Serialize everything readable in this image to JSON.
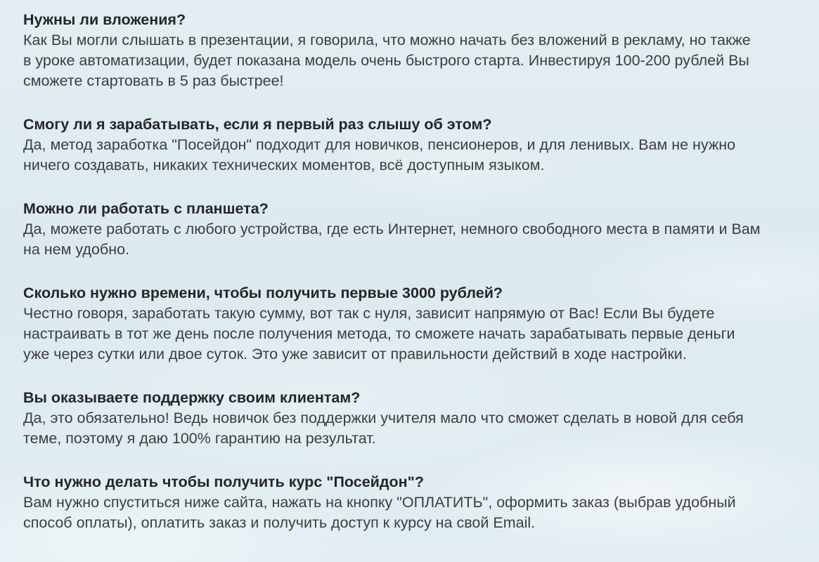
{
  "page": {
    "background_color": "#dfebf1",
    "heading_color": "#262626",
    "body_text_color": "#3d3d3d"
  },
  "faq": {
    "items": [
      {
        "question": "Нужны ли вложения?",
        "answer": "Как Вы могли слышать в презентации, я говорила, что можно начать без вложений в рекламу, но также в уроке автоматизации, будет показана модель очень быстрого старта. Инвестируя 100-200 рублей Вы сможете стартовать в 5 раз быстрее!"
      },
      {
        "question": "Смогу ли я зарабатывать, если я первый раз слышу об этом?",
        "answer": "Да, метод заработка \"Посейдон\" подходит для новичков, пенсионеров, и для ленивых. Вам не нужно ничего создавать, никаких технических моментов, всё доступным языком."
      },
      {
        "question": "Можно ли работать с планшета?",
        "answer": "Да, можете работать с любого устройства, где есть Интернет, немного свободного места в памяти и Вам на нем удобно."
      },
      {
        "question": "Сколько нужно времени, чтобы получить первые 3000 рублей?",
        "answer": "Честно говоря, заработать такую сумму, вот так с нуля, зависит напрямую от Вас! Если Вы будете настраивать в тот же день после получения метода, то сможете начать зарабатывать первые деньги уже через сутки или двое суток. Это уже зависит от правильности действий в ходе настройки."
      },
      {
        "question": "Вы оказываете поддержку своим клиентам?",
        "answer": "Да, это обязательно! Ведь новичок без поддержки учителя мало что сможет сделать в новой для себя теме, поэтому я даю 100% гарантию на результат."
      },
      {
        "question": "Что нужно делать чтобы получить курс \"Посейдон\"?",
        "answer": "Вам нужно спуститься ниже сайта, нажать на кнопку \"ОПЛАТИТЬ\", оформить заказ (выбрав удобный способ оплаты), оплатить заказ и получить доступ к курсу на свой Email."
      }
    ]
  }
}
